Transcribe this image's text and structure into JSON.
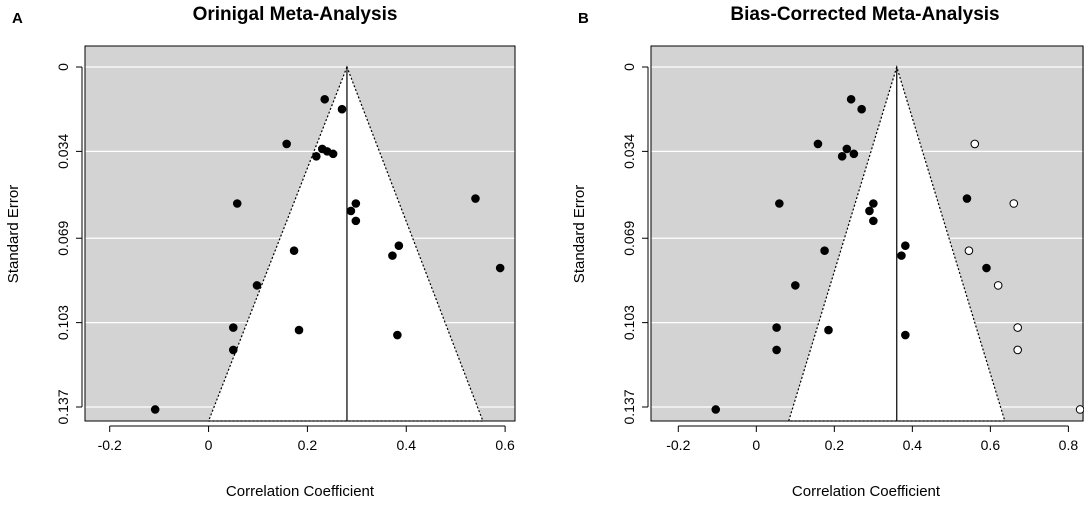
{
  "chart_data": [
    {
      "type": "scatter",
      "panel": "A",
      "title": "Orinigal Meta-Analysis",
      "xlabel": "Correlation Coefficient",
      "ylabel": "Standard Error",
      "xlim": [
        -0.25,
        0.62
      ],
      "ylim": [
        0,
        0.137
      ],
      "x_ticks": [
        -0.2,
        0,
        0.2,
        0.4,
        0.6
      ],
      "x_tick_labels": [
        "-0.2",
        "0",
        "0.2",
        "0.4",
        "0.6"
      ],
      "y_ticks": [
        0,
        0.034,
        0.069,
        0.103,
        0.137
      ],
      "y_tick_labels": [
        "0",
        "0.034",
        "0.069",
        "0.103",
        "0.137"
      ],
      "y_reversed": true,
      "pooled_estimate": 0.28,
      "funnel_bottom": [
        0.0,
        0.555
      ],
      "points_observed": [
        {
          "x": 0.235,
          "y": 0.013
        },
        {
          "x": 0.27,
          "y": 0.017
        },
        {
          "x": 0.158,
          "y": 0.031
        },
        {
          "x": 0.23,
          "y": 0.033
        },
        {
          "x": 0.24,
          "y": 0.034
        },
        {
          "x": 0.218,
          "y": 0.036
        },
        {
          "x": 0.252,
          "y": 0.035
        },
        {
          "x": 0.058,
          "y": 0.055
        },
        {
          "x": 0.54,
          "y": 0.053
        },
        {
          "x": 0.298,
          "y": 0.055
        },
        {
          "x": 0.288,
          "y": 0.058
        },
        {
          "x": 0.298,
          "y": 0.062
        },
        {
          "x": 0.173,
          "y": 0.074
        },
        {
          "x": 0.385,
          "y": 0.072
        },
        {
          "x": 0.372,
          "y": 0.076
        },
        {
          "x": 0.59,
          "y": 0.081
        },
        {
          "x": 0.098,
          "y": 0.088
        },
        {
          "x": 0.05,
          "y": 0.105
        },
        {
          "x": 0.183,
          "y": 0.106
        },
        {
          "x": 0.382,
          "y": 0.108
        },
        {
          "x": 0.05,
          "y": 0.114
        },
        {
          "x": -0.108,
          "y": 0.138
        }
      ],
      "points_imputed": []
    },
    {
      "type": "scatter",
      "panel": "B",
      "title": "Bias-Corrected Meta-Analysis",
      "xlabel": "Correlation Coefficient",
      "ylabel": "Standard Error",
      "xlim": [
        -0.27,
        0.84
      ],
      "ylim": [
        0,
        0.137
      ],
      "x_ticks": [
        -0.2,
        0,
        0.2,
        0.4,
        0.6,
        0.8
      ],
      "x_tick_labels": [
        "-0.2",
        "0",
        "0.2",
        "0.4",
        "0.6",
        "0.8"
      ],
      "y_ticks": [
        0,
        0.034,
        0.069,
        0.103,
        0.137
      ],
      "y_tick_labels": [
        "0",
        "0.034",
        "0.069",
        "0.103",
        "0.137"
      ],
      "y_reversed": true,
      "pooled_estimate": 0.36,
      "funnel_bottom": [
        0.083,
        0.637
      ],
      "points_observed": [
        {
          "x": 0.243,
          "y": 0.013
        },
        {
          "x": 0.27,
          "y": 0.017
        },
        {
          "x": 0.158,
          "y": 0.031
        },
        {
          "x": 0.232,
          "y": 0.033
        },
        {
          "x": 0.25,
          "y": 0.035
        },
        {
          "x": 0.22,
          "y": 0.036
        },
        {
          "x": 0.059,
          "y": 0.055
        },
        {
          "x": 0.54,
          "y": 0.053
        },
        {
          "x": 0.3,
          "y": 0.055
        },
        {
          "x": 0.29,
          "y": 0.058
        },
        {
          "x": 0.3,
          "y": 0.062
        },
        {
          "x": 0.175,
          "y": 0.074
        },
        {
          "x": 0.382,
          "y": 0.072
        },
        {
          "x": 0.372,
          "y": 0.076
        },
        {
          "x": 0.59,
          "y": 0.081
        },
        {
          "x": 0.1,
          "y": 0.088
        },
        {
          "x": 0.052,
          "y": 0.105
        },
        {
          "x": 0.185,
          "y": 0.106
        },
        {
          "x": 0.382,
          "y": 0.108
        },
        {
          "x": 0.052,
          "y": 0.114
        },
        {
          "x": -0.104,
          "y": 0.138
        }
      ],
      "points_imputed": [
        {
          "x": 0.56,
          "y": 0.031
        },
        {
          "x": 0.66,
          "y": 0.055
        },
        {
          "x": 0.545,
          "y": 0.074
        },
        {
          "x": 0.62,
          "y": 0.088
        },
        {
          "x": 0.67,
          "y": 0.105
        },
        {
          "x": 0.67,
          "y": 0.114
        },
        {
          "x": 0.83,
          "y": 0.138
        }
      ]
    }
  ]
}
